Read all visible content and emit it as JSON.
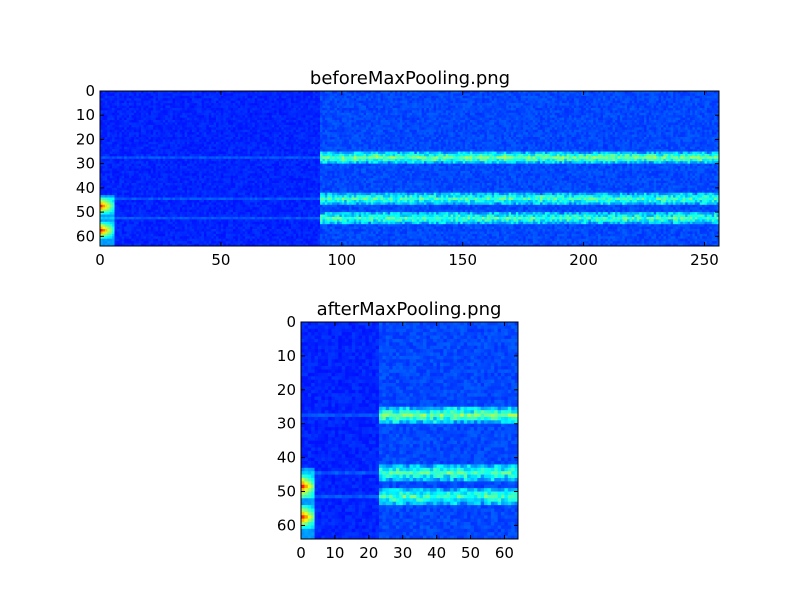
{
  "chart_data": [
    {
      "type": "heatmap",
      "title": "beforeMaxPooling.png",
      "colormap": "jet",
      "width": 256,
      "height": 64,
      "xlim": [
        0,
        256
      ],
      "ylim": [
        64,
        0
      ],
      "xticks": [
        0,
        50,
        100,
        150,
        200,
        250
      ],
      "yticks": [
        0,
        10,
        20,
        30,
        40,
        50,
        60
      ],
      "features": {
        "dark_region_until_x": 90,
        "bright_bands_y": [
          27,
          44,
          52
        ],
        "hotspot_x_range": [
          0,
          5
        ],
        "hotspot_y": [
          47,
          57
        ]
      }
    },
    {
      "type": "heatmap",
      "title": "afterMaxPooling.png",
      "colormap": "jet",
      "width": 64,
      "height": 64,
      "xlim": [
        0,
        64
      ],
      "ylim": [
        64,
        0
      ],
      "xticks": [
        0,
        10,
        20,
        30,
        40,
        50,
        60
      ],
      "yticks": [
        0,
        10,
        20,
        30,
        40,
        50,
        60
      ],
      "features": {
        "dark_region_until_x": 22,
        "bright_bands_y": [
          27,
          44,
          51
        ],
        "hotspot_x_range": [
          0,
          3
        ],
        "hotspot_y": [
          48,
          57
        ]
      }
    }
  ]
}
